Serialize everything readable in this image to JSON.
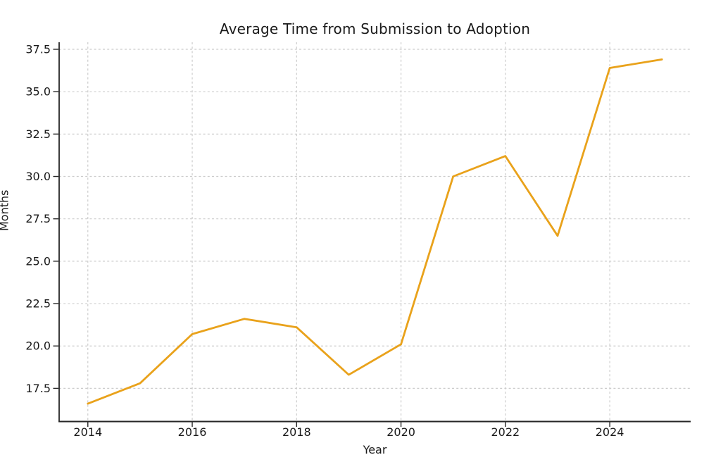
{
  "figure": {
    "background": "#ffffff"
  },
  "chart_data": {
    "type": "line",
    "title": "Average Time from Submission to Adoption",
    "xlabel": "Year",
    "ylabel": "Months",
    "x": [
      2014,
      2015,
      2016,
      2017,
      2018,
      2019,
      2020,
      2021,
      2022,
      2023,
      2024,
      2025
    ],
    "series": [
      {
        "name": "average-time-months",
        "values": [
          16.6,
          17.8,
          20.7,
          21.6,
          21.1,
          18.3,
          20.1,
          30.0,
          31.2,
          26.5,
          36.4,
          36.9
        ],
        "color": "#E9A21B"
      }
    ],
    "x_ticks": [
      2014,
      2016,
      2018,
      2020,
      2022,
      2024
    ],
    "x_tick_labels": [
      "2014",
      "2016",
      "2018",
      "2020",
      "2022",
      "2024"
    ],
    "y_ticks": [
      17.5,
      20.0,
      22.5,
      25.0,
      27.5,
      30.0,
      32.5,
      35.0,
      37.5
    ],
    "y_tick_labels": [
      "17.5",
      "20.0",
      "22.5",
      "25.0",
      "27.5",
      "30.0",
      "32.5",
      "35.0",
      "37.5"
    ],
    "xlim": [
      2013.45,
      2025.55
    ],
    "ylim": [
      15.585,
      37.915
    ],
    "grid": true,
    "grid_style": "dashed",
    "grid_color": "#cccccc",
    "legend_position": "none",
    "text_color": "#1a1a1a",
    "spine_color": "#262626"
  }
}
